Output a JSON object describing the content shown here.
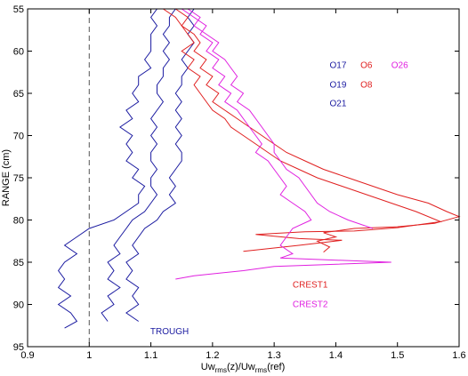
{
  "chart_data": {
    "type": "line",
    "title": "",
    "xlabel": "Uw_rms(z)/Uw_rms(ref)",
    "xlabel_parts": {
      "a": "Uw",
      "a_sub": "rms",
      "b": "(z)/Uw",
      "b_sub": "rms",
      "c": "(ref)"
    },
    "ylabel": "RANGE (cm)",
    "xlim": [
      0.9,
      1.6
    ],
    "ylim": [
      95,
      55
    ],
    "y_inverted": true,
    "x_ticks": [
      "0.9",
      "1",
      "1.1",
      "1.2",
      "1.3",
      "1.4",
      "1.5",
      "1.6"
    ],
    "y_ticks": [
      "55",
      "60",
      "65",
      "70",
      "75",
      "80",
      "85",
      "90",
      "95"
    ],
    "x_tick_values": [
      0.9,
      1.0,
      1.1,
      1.2,
      1.3,
      1.4,
      1.5,
      1.6
    ],
    "y_tick_values": [
      55,
      60,
      65,
      70,
      75,
      80,
      85,
      90,
      95
    ],
    "reference_line": {
      "x": 1.0,
      "style": "dashed",
      "color": "#555555"
    },
    "colors": {
      "blue": "#1a1aa0",
      "red": "#e02020",
      "magenta": "#e020e0"
    },
    "legend_labels": [
      {
        "text": "O17",
        "color": "#1a1aa0",
        "x": 1.39,
        "y": 62.0
      },
      {
        "text": "O6",
        "color": "#e02020",
        "x": 1.44,
        "y": 62.0
      },
      {
        "text": "O26",
        "color": "#e020e0",
        "x": 1.49,
        "y": 62.0
      },
      {
        "text": "O19",
        "color": "#1a1aa0",
        "x": 1.39,
        "y": 64.3
      },
      {
        "text": "O8",
        "color": "#e02020",
        "x": 1.44,
        "y": 64.3
      },
      {
        "text": "O21",
        "color": "#1a1aa0",
        "x": 1.39,
        "y": 66.5
      }
    ],
    "annotations": [
      {
        "text": "CREST1",
        "color": "#e02020",
        "x": 1.33,
        "y": 88.0
      },
      {
        "text": "CREST2",
        "color": "#e020e0",
        "x": 1.33,
        "y": 90.3
      },
      {
        "text": "TROUGH",
        "color": "#1a1aa0",
        "x": 1.099,
        "y": 93.5
      }
    ],
    "series": [
      {
        "color": "#1a1aa0",
        "points": [
          [
            1.11,
            55
          ],
          [
            1.1,
            56
          ],
          [
            1.11,
            57
          ],
          [
            1.1,
            58
          ],
          [
            1.1,
            59
          ],
          [
            1.1,
            60
          ],
          [
            1.09,
            61
          ],
          [
            1.1,
            62
          ],
          [
            1.08,
            63
          ],
          [
            1.08,
            64
          ],
          [
            1.07,
            65
          ],
          [
            1.08,
            66
          ],
          [
            1.06,
            67
          ],
          [
            1.07,
            68
          ],
          [
            1.05,
            69
          ],
          [
            1.07,
            70
          ],
          [
            1.06,
            71
          ],
          [
            1.07,
            72
          ],
          [
            1.06,
            73
          ],
          [
            1.08,
            74
          ],
          [
            1.07,
            75
          ],
          [
            1.09,
            76
          ],
          [
            1.08,
            77
          ],
          [
            1.08,
            78
          ],
          [
            1.06,
            79
          ],
          [
            1.04,
            80
          ],
          [
            1.0,
            81
          ],
          [
            0.98,
            82
          ],
          [
            0.96,
            83
          ],
          [
            0.98,
            84
          ],
          [
            0.96,
            85
          ],
          [
            0.95,
            86
          ],
          [
            0.96,
            87
          ],
          [
            0.95,
            88
          ],
          [
            0.97,
            89
          ],
          [
            0.95,
            90
          ],
          [
            0.97,
            91
          ],
          [
            0.98,
            92
          ],
          [
            0.96,
            92.8
          ]
        ]
      },
      {
        "color": "#1a1aa0",
        "points": [
          [
            1.14,
            55
          ],
          [
            1.13,
            56
          ],
          [
            1.13,
            57
          ],
          [
            1.12,
            58
          ],
          [
            1.13,
            59
          ],
          [
            1.12,
            60
          ],
          [
            1.13,
            61
          ],
          [
            1.12,
            62
          ],
          [
            1.12,
            63
          ],
          [
            1.11,
            64
          ],
          [
            1.11,
            65
          ],
          [
            1.12,
            66
          ],
          [
            1.11,
            67
          ],
          [
            1.1,
            68
          ],
          [
            1.11,
            69
          ],
          [
            1.1,
            70
          ],
          [
            1.11,
            71
          ],
          [
            1.1,
            72
          ],
          [
            1.1,
            73
          ],
          [
            1.11,
            74
          ],
          [
            1.1,
            75
          ],
          [
            1.1,
            76
          ],
          [
            1.11,
            77
          ],
          [
            1.1,
            78
          ],
          [
            1.09,
            79
          ],
          [
            1.07,
            80
          ],
          [
            1.06,
            81
          ],
          [
            1.05,
            82
          ],
          [
            1.04,
            83
          ],
          [
            1.05,
            84
          ],
          [
            1.03,
            85
          ],
          [
            1.04,
            86
          ],
          [
            1.03,
            87
          ],
          [
            1.05,
            88
          ],
          [
            1.03,
            89
          ],
          [
            1.04,
            90
          ],
          [
            1.02,
            91
          ],
          [
            1.03,
            92
          ]
        ]
      },
      {
        "color": "#1a1aa0",
        "points": [
          [
            1.17,
            55
          ],
          [
            1.16,
            56
          ],
          [
            1.17,
            57
          ],
          [
            1.16,
            58
          ],
          [
            1.17,
            59
          ],
          [
            1.16,
            60
          ],
          [
            1.15,
            61
          ],
          [
            1.16,
            62
          ],
          [
            1.15,
            63
          ],
          [
            1.15,
            64
          ],
          [
            1.14,
            65
          ],
          [
            1.15,
            66
          ],
          [
            1.14,
            67
          ],
          [
            1.15,
            68
          ],
          [
            1.14,
            69
          ],
          [
            1.15,
            70
          ],
          [
            1.14,
            71
          ],
          [
            1.15,
            72
          ],
          [
            1.15,
            73
          ],
          [
            1.14,
            74
          ],
          [
            1.13,
            75
          ],
          [
            1.14,
            76
          ],
          [
            1.13,
            77
          ],
          [
            1.14,
            78
          ],
          [
            1.12,
            79
          ],
          [
            1.11,
            80
          ],
          [
            1.09,
            81
          ],
          [
            1.08,
            82
          ],
          [
            1.07,
            83
          ],
          [
            1.08,
            84
          ],
          [
            1.06,
            85
          ],
          [
            1.07,
            86
          ],
          [
            1.06,
            87
          ],
          [
            1.08,
            88
          ],
          [
            1.07,
            89
          ],
          [
            1.08,
            90
          ],
          [
            1.06,
            91
          ],
          [
            1.08,
            92
          ]
        ]
      },
      {
        "color": "#e02020",
        "points": [
          [
            1.14,
            55
          ],
          [
            1.16,
            56
          ],
          [
            1.15,
            57
          ],
          [
            1.17,
            58
          ],
          [
            1.18,
            59
          ],
          [
            1.17,
            60
          ],
          [
            1.19,
            61
          ],
          [
            1.18,
            62
          ],
          [
            1.2,
            63
          ],
          [
            1.19,
            64
          ],
          [
            1.21,
            65
          ],
          [
            1.2,
            66
          ],
          [
            1.22,
            67
          ],
          [
            1.24,
            68
          ],
          [
            1.26,
            69
          ],
          [
            1.28,
            70
          ],
          [
            1.3,
            71
          ],
          [
            1.32,
            72
          ],
          [
            1.35,
            73
          ],
          [
            1.38,
            74
          ],
          [
            1.42,
            75
          ],
          [
            1.46,
            76
          ],
          [
            1.5,
            77
          ],
          [
            1.55,
            78
          ],
          [
            1.58,
            79
          ],
          [
            1.6,
            79.6
          ],
          [
            1.56,
            80.4
          ],
          [
            1.5,
            80.8
          ],
          [
            1.43,
            81
          ],
          [
            1.38,
            81.5
          ],
          [
            1.4,
            82
          ],
          [
            1.37,
            82.5
          ],
          [
            1.39,
            83.2
          ],
          [
            1.38,
            83.8
          ]
        ]
      },
      {
        "color": "#e02020",
        "points": [
          [
            1.12,
            55
          ],
          [
            1.14,
            56
          ],
          [
            1.15,
            57
          ],
          [
            1.16,
            58
          ],
          [
            1.17,
            59
          ],
          [
            1.15,
            60
          ],
          [
            1.17,
            61
          ],
          [
            1.16,
            62
          ],
          [
            1.18,
            63
          ],
          [
            1.17,
            64
          ],
          [
            1.18,
            65
          ],
          [
            1.19,
            66
          ],
          [
            1.2,
            67
          ],
          [
            1.22,
            68
          ],
          [
            1.23,
            69
          ],
          [
            1.25,
            70
          ],
          [
            1.27,
            71
          ],
          [
            1.29,
            72
          ],
          [
            1.31,
            73
          ],
          [
            1.34,
            74
          ],
          [
            1.37,
            75
          ],
          [
            1.41,
            76
          ],
          [
            1.45,
            77
          ],
          [
            1.49,
            78
          ],
          [
            1.53,
            79
          ],
          [
            1.57,
            80.2
          ],
          [
            1.5,
            80.9
          ],
          [
            1.43,
            81.3
          ],
          [
            1.35,
            81.4
          ],
          [
            1.27,
            81.7
          ],
          [
            1.34,
            82.2
          ],
          [
            1.41,
            82.4
          ],
          [
            1.34,
            83
          ],
          [
            1.25,
            83.7
          ]
        ]
      },
      {
        "color": "#e020e0",
        "points": [
          [
            1.15,
            55
          ],
          [
            1.17,
            56
          ],
          [
            1.19,
            57
          ],
          [
            1.18,
            58
          ],
          [
            1.2,
            59
          ],
          [
            1.19,
            60
          ],
          [
            1.21,
            61
          ],
          [
            1.2,
            62
          ],
          [
            1.22,
            63
          ],
          [
            1.21,
            64
          ],
          [
            1.23,
            65
          ],
          [
            1.22,
            66
          ],
          [
            1.24,
            67
          ],
          [
            1.25,
            68
          ],
          [
            1.26,
            69
          ],
          [
            1.27,
            70
          ],
          [
            1.28,
            71
          ],
          [
            1.27,
            72
          ],
          [
            1.29,
            73
          ],
          [
            1.3,
            74
          ],
          [
            1.31,
            75
          ],
          [
            1.32,
            76
          ],
          [
            1.31,
            77
          ],
          [
            1.33,
            78
          ],
          [
            1.35,
            79
          ],
          [
            1.36,
            80
          ],
          [
            1.33,
            81
          ],
          [
            1.32,
            82
          ],
          [
            1.31,
            83
          ],
          [
            1.33,
            84
          ],
          [
            1.31,
            84.5
          ],
          [
            1.49,
            85
          ],
          [
            1.3,
            85.5
          ],
          [
            1.25,
            86
          ],
          [
            1.17,
            86.6
          ],
          [
            1.14,
            87
          ]
        ]
      },
      {
        "color": "#e020e0",
        "points": [
          [
            1.16,
            55
          ],
          [
            1.18,
            56
          ],
          [
            1.17,
            57
          ],
          [
            1.19,
            58
          ],
          [
            1.21,
            59
          ],
          [
            1.2,
            60
          ],
          [
            1.22,
            61
          ],
          [
            1.23,
            62
          ],
          [
            1.24,
            63
          ],
          [
            1.23,
            64
          ],
          [
            1.25,
            65
          ],
          [
            1.24,
            66
          ],
          [
            1.26,
            67
          ],
          [
            1.27,
            68
          ],
          [
            1.28,
            69
          ],
          [
            1.29,
            70
          ],
          [
            1.3,
            71
          ],
          [
            1.3,
            72
          ],
          [
            1.31,
            73
          ],
          [
            1.32,
            74
          ],
          [
            1.34,
            75
          ],
          [
            1.35,
            76
          ],
          [
            1.36,
            77
          ],
          [
            1.37,
            78
          ],
          [
            1.39,
            79
          ],
          [
            1.42,
            80
          ],
          [
            1.46,
            81
          ]
        ]
      }
    ]
  }
}
